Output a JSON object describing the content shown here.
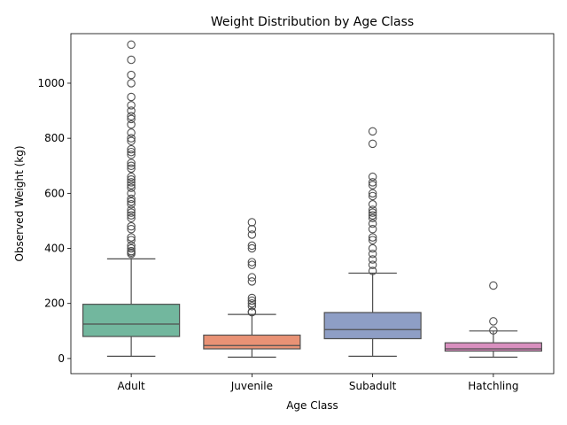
{
  "chart_data": {
    "type": "box",
    "title": "Weight Distribution by Age Class",
    "xlabel": "Age Class",
    "ylabel": "Observed Weight (kg)",
    "ylim": [
      -55,
      1180
    ],
    "yticks": [
      0,
      200,
      400,
      600,
      800,
      1000
    ],
    "grid": false,
    "legend": "none",
    "categories": [
      "Adult",
      "Juvenile",
      "Subadult",
      "Hatchling"
    ],
    "boxes": [
      {
        "category": "Adult",
        "color": "#72b79e",
        "whisker_low": 8,
        "q1": 80,
        "median": 125,
        "q3": 197,
        "whisker_high": 362,
        "outliers": [
          380,
          385,
          390,
          400,
          410,
          430,
          440,
          470,
          480,
          510,
          520,
          530,
          540,
          560,
          570,
          580,
          600,
          620,
          630,
          640,
          650,
          660,
          690,
          700,
          710,
          740,
          750,
          760,
          790,
          800,
          820,
          850,
          870,
          880,
          900,
          920,
          950,
          1000,
          1030,
          1085,
          1140
        ]
      },
      {
        "category": "Juvenile",
        "color": "#e99275",
        "whisker_low": 5,
        "q1": 35,
        "median": 47,
        "q3": 85,
        "whisker_high": 160,
        "outliers": [
          168,
          170,
          190,
          200,
          210,
          220,
          280,
          295,
          340,
          350,
          400,
          410,
          450,
          470,
          495
        ]
      },
      {
        "category": "Subadult",
        "color": "#8e9ec5",
        "whisker_low": 8,
        "q1": 72,
        "median": 105,
        "q3": 167,
        "whisker_high": 310,
        "outliers": [
          318,
          340,
          360,
          380,
          400,
          430,
          440,
          470,
          490,
          510,
          520,
          530,
          540,
          560,
          590,
          600,
          630,
          640,
          660,
          780,
          825
        ]
      },
      {
        "category": "Hatchling",
        "color": "#d98fbf",
        "whisker_low": 5,
        "q1": 27,
        "median": 35,
        "q3": 57,
        "whisker_high": 100,
        "outliers": [
          102,
          135,
          265
        ]
      }
    ]
  }
}
